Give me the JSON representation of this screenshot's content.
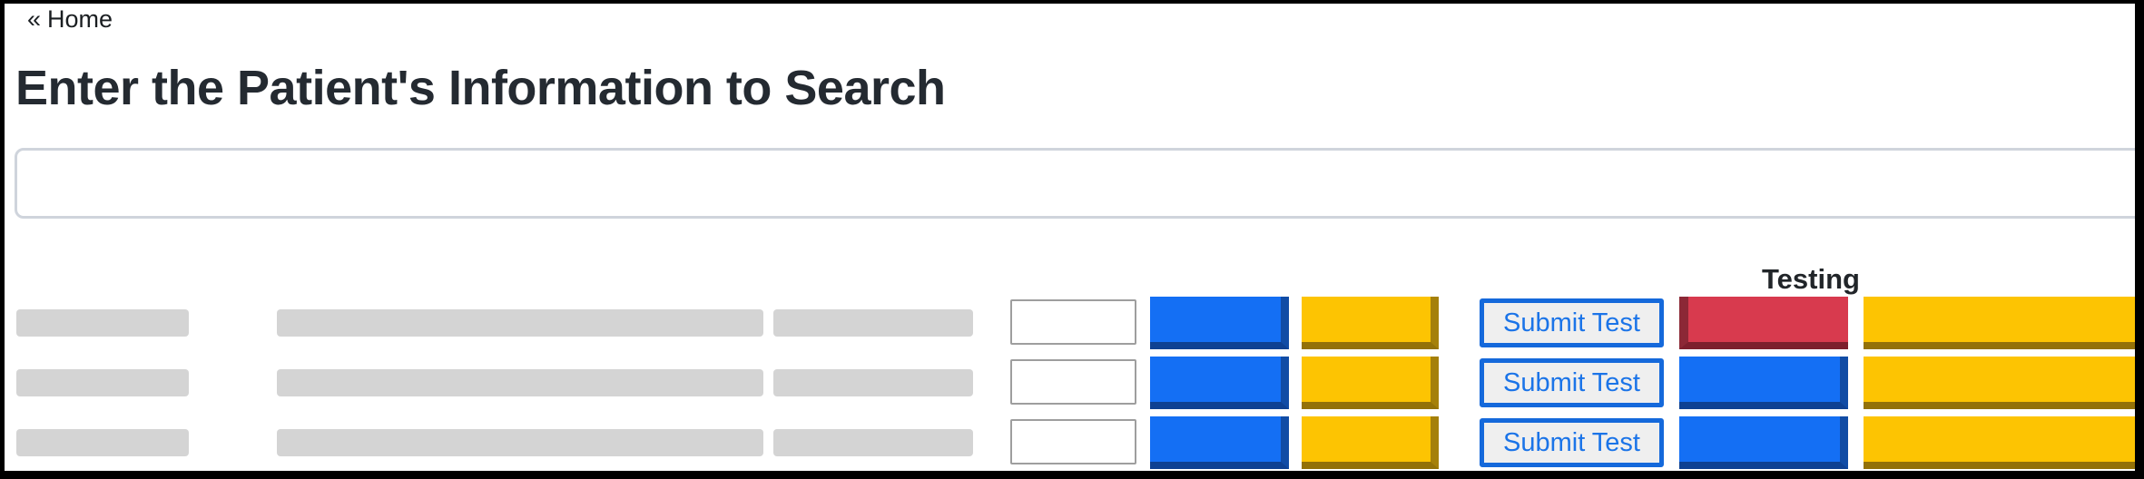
{
  "page": {
    "back_link": {
      "chevron": "«",
      "label": "Home"
    },
    "title": "Enter the Patient's Information to Search"
  },
  "search": {
    "value": "",
    "placeholder": ""
  },
  "table": {
    "testing_header": "Testing",
    "rows": [
      {
        "submit_label": "Submit Test",
        "testing_status": "red",
        "input_value": ""
      },
      {
        "submit_label": "Submit Test",
        "testing_status": "blue",
        "input_value": ""
      },
      {
        "submit_label": "Submit Test",
        "testing_status": "blue",
        "input_value": ""
      }
    ]
  },
  "colors": {
    "frame": "#000000",
    "text_dark": "#212529",
    "blue_button": "#146FF4",
    "blue_button_shade": "#114CA5",
    "yellow_button": "#FDC402",
    "yellow_button_shade": "#A5800A",
    "red_button": "#D83A4E",
    "red_button_shade": "#8C2836",
    "submit_border": "#1569DB",
    "submit_text": "#1B74E8",
    "submit_bg": "#EFEFEF",
    "placeholder_bar": "#D4D4D4",
    "row_input_border": "#9E9E9E",
    "search_border": "#CFD4DC"
  }
}
